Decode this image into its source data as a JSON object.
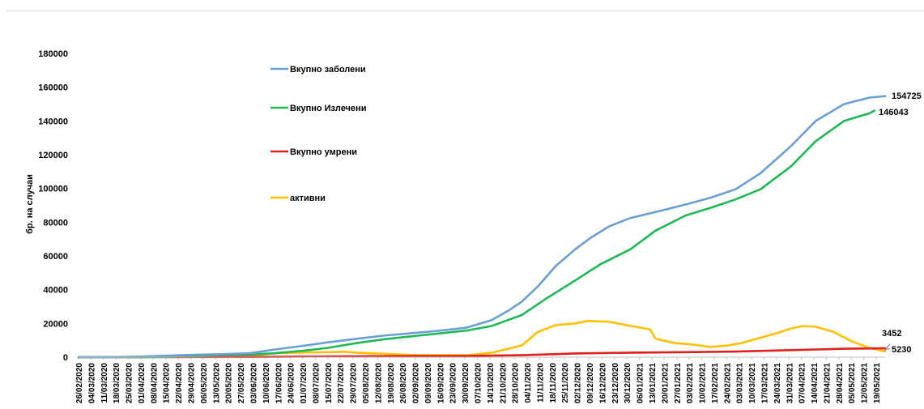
{
  "chart_data": {
    "type": "line",
    "title": "",
    "xlabel": "",
    "ylabel": "бр. на случаи",
    "ylim": [
      0,
      180000
    ],
    "yticks": [
      0,
      20000,
      40000,
      60000,
      80000,
      100000,
      120000,
      140000,
      160000,
      180000
    ],
    "grid": false,
    "legend_position": "inside-top-left",
    "x_start": "2020-02-26",
    "x_end": "2021-05-24",
    "x_tick_step_days": 7,
    "x_tick_format": "dd/mm/yyyy",
    "series": [
      {
        "name": "Вкупно заболени",
        "color": "#6a9fd4",
        "end_label": "154725",
        "points": [
          [
            "2020-02-26",
            0
          ],
          [
            "2020-03-15",
            50
          ],
          [
            "2020-04-01",
            330
          ],
          [
            "2020-04-15",
            850
          ],
          [
            "2020-05-01",
            1450
          ],
          [
            "2020-05-15",
            1750
          ],
          [
            "2020-06-01",
            2300
          ],
          [
            "2020-06-15",
            4500
          ],
          [
            "2020-07-01",
            6700
          ],
          [
            "2020-07-15",
            8800
          ],
          [
            "2020-08-01",
            11000
          ],
          [
            "2020-08-15",
            12700
          ],
          [
            "2020-09-01",
            14300
          ],
          [
            "2020-09-15",
            15600
          ],
          [
            "2020-10-01",
            17500
          ],
          [
            "2020-10-15",
            22000
          ],
          [
            "2020-10-25",
            28000
          ],
          [
            "2020-11-01",
            33000
          ],
          [
            "2020-11-10",
            42000
          ],
          [
            "2020-11-20",
            54000
          ],
          [
            "2020-12-01",
            64000
          ],
          [
            "2020-12-10",
            71000
          ],
          [
            "2020-12-20",
            77500
          ],
          [
            "2021-01-01",
            82500
          ],
          [
            "2021-01-15",
            86000
          ],
          [
            "2021-02-01",
            90500
          ],
          [
            "2021-02-15",
            94500
          ],
          [
            "2021-03-01",
            99500
          ],
          [
            "2021-03-15",
            109000
          ],
          [
            "2021-04-01",
            125000
          ],
          [
            "2021-04-15",
            140000
          ],
          [
            "2021-05-01",
            150000
          ],
          [
            "2021-05-15",
            153800
          ],
          [
            "2021-05-24",
            154725
          ]
        ]
      },
      {
        "name": "Вкупно Излечени",
        "color": "#1db954",
        "end_label": "146043",
        "points": [
          [
            "2020-02-26",
            0
          ],
          [
            "2020-03-15",
            0
          ],
          [
            "2020-04-01",
            20
          ],
          [
            "2020-04-15",
            150
          ],
          [
            "2020-05-01",
            800
          ],
          [
            "2020-05-15",
            1300
          ],
          [
            "2020-06-01",
            1600
          ],
          [
            "2020-06-15",
            2300
          ],
          [
            "2020-07-01",
            3800
          ],
          [
            "2020-07-15",
            5500
          ],
          [
            "2020-08-01",
            8500
          ],
          [
            "2020-08-15",
            10500
          ],
          [
            "2020-09-01",
            12500
          ],
          [
            "2020-09-15",
            14000
          ],
          [
            "2020-10-01",
            15800
          ],
          [
            "2020-10-15",
            18500
          ],
          [
            "2020-11-01",
            25000
          ],
          [
            "2020-11-15",
            35000
          ],
          [
            "2020-12-01",
            45500
          ],
          [
            "2020-12-15",
            55000
          ],
          [
            "2021-01-01",
            64000
          ],
          [
            "2021-01-15",
            75000
          ],
          [
            "2021-02-01",
            84000
          ],
          [
            "2021-02-15",
            88500
          ],
          [
            "2021-03-01",
            93500
          ],
          [
            "2021-03-15",
            99500
          ],
          [
            "2021-04-01",
            113000
          ],
          [
            "2021-04-15",
            128000
          ],
          [
            "2021-05-01",
            140000
          ],
          [
            "2021-05-15",
            144500
          ],
          [
            "2021-05-18",
            146043
          ]
        ]
      },
      {
        "name": "Вкупно умрени",
        "color": "#e0211b",
        "end_label": "5230",
        "points": [
          [
            "2020-02-26",
            0
          ],
          [
            "2020-04-01",
            15
          ],
          [
            "2020-05-01",
            80
          ],
          [
            "2020-06-01",
            150
          ],
          [
            "2020-07-01",
            320
          ],
          [
            "2020-08-01",
            550
          ],
          [
            "2020-09-01",
            650
          ],
          [
            "2020-10-01",
            750
          ],
          [
            "2020-11-01",
            1150
          ],
          [
            "2020-12-01",
            2200
          ],
          [
            "2021-01-01",
            2700
          ],
          [
            "2021-02-01",
            3000
          ],
          [
            "2021-03-01",
            3300
          ],
          [
            "2021-04-01",
            4200
          ],
          [
            "2021-05-01",
            5000
          ],
          [
            "2021-05-24",
            5230
          ]
        ]
      },
      {
        "name": "активни",
        "color": "#ffc000",
        "end_label": "3452",
        "points": [
          [
            "2020-02-26",
            0
          ],
          [
            "2020-03-15",
            50
          ],
          [
            "2020-04-01",
            300
          ],
          [
            "2020-04-15",
            700
          ],
          [
            "2020-05-01",
            700
          ],
          [
            "2020-05-15",
            400
          ],
          [
            "2020-06-01",
            700
          ],
          [
            "2020-06-15",
            2300
          ],
          [
            "2020-07-01",
            2800
          ],
          [
            "2020-07-15",
            3000
          ],
          [
            "2020-07-25",
            3200
          ],
          [
            "2020-08-01",
            2600
          ],
          [
            "2020-08-15",
            2000
          ],
          [
            "2020-09-01",
            1300
          ],
          [
            "2020-09-15",
            1200
          ],
          [
            "2020-10-01",
            1200
          ],
          [
            "2020-10-15",
            2600
          ],
          [
            "2020-11-01",
            7000
          ],
          [
            "2020-11-10",
            15000
          ],
          [
            "2020-11-20",
            19000
          ],
          [
            "2020-12-01",
            20000
          ],
          [
            "2020-12-08",
            21500
          ],
          [
            "2020-12-20",
            21000
          ],
          [
            "2021-01-01",
            18500
          ],
          [
            "2021-01-12",
            16500
          ],
          [
            "2021-01-15",
            11000
          ],
          [
            "2021-01-25",
            8500
          ],
          [
            "2021-02-05",
            7500
          ],
          [
            "2021-02-15",
            6000
          ],
          [
            "2021-02-25",
            7000
          ],
          [
            "2021-03-05",
            8500
          ],
          [
            "2021-03-15",
            11500
          ],
          [
            "2021-03-25",
            14500
          ],
          [
            "2021-04-01",
            17000
          ],
          [
            "2021-04-08",
            18500
          ],
          [
            "2021-04-15",
            18000
          ],
          [
            "2021-04-25",
            15000
          ],
          [
            "2021-05-05",
            9500
          ],
          [
            "2021-05-15",
            5500
          ],
          [
            "2021-05-24",
            3452
          ]
        ]
      }
    ]
  }
}
